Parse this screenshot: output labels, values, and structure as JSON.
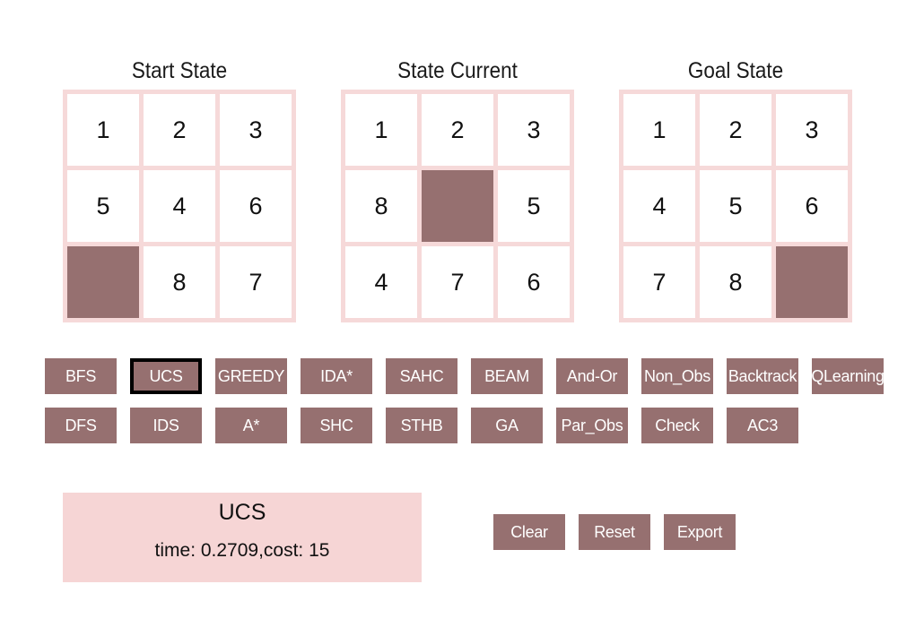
{
  "boards": [
    {
      "title": "Start State",
      "cells": [
        "1",
        "2",
        "3",
        "5",
        "4",
        "6",
        "",
        "8",
        "7"
      ]
    },
    {
      "title": "State Current",
      "cells": [
        "1",
        "2",
        "3",
        "8",
        "",
        "5",
        "4",
        "7",
        "6"
      ]
    },
    {
      "title": "Goal State",
      "cells": [
        "1",
        "2",
        "3",
        "4",
        "5",
        "6",
        "7",
        "8",
        ""
      ]
    }
  ],
  "algorithm_buttons": {
    "row1": [
      "BFS",
      "UCS",
      "GREEDY",
      "IDA*",
      "SAHC",
      "BEAM",
      "And-Or",
      "Non_Obs",
      "Backtrack",
      "QLearning"
    ],
    "row2": [
      "DFS",
      "IDS",
      "A*",
      "SHC",
      "STHB",
      "GA",
      "Par_Obs",
      "Check",
      "AC3"
    ]
  },
  "selected_algorithm": "UCS",
  "result": {
    "algorithm": "UCS",
    "stats": "time: 0.2709,cost: 15"
  },
  "controls": {
    "clear_label": "Clear",
    "reset_label": "Reset",
    "export_label": "Export"
  },
  "colors": {
    "button": "#967070",
    "board_frame": "#f6d9d9",
    "blank_tile": "#967070",
    "result_panel": "#f6d5d5"
  }
}
